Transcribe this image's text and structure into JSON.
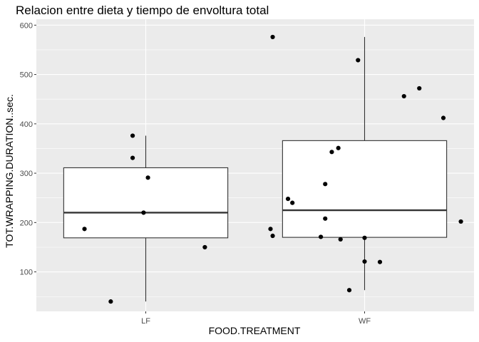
{
  "chart_data": {
    "type": "boxplot",
    "title": "Relacion entre dieta y tiempo de envoltura total",
    "xlabel": "FOOD.TREATMENT",
    "ylabel": "TOT.WRAPPING.DURATION..sec.",
    "categories": [
      "LF",
      "WF"
    ],
    "ylim": [
      20,
      612
    ],
    "yticks": [
      100,
      200,
      300,
      400,
      500,
      600
    ],
    "grid": true,
    "colors": {
      "panel": "#ebebeb",
      "grid": "#ffffff",
      "box_fill": "#ffffff",
      "box_line": "#333333",
      "point": "#000000"
    },
    "boxes": [
      {
        "category": "LF",
        "whisker_low": 40,
        "q1": 169,
        "median": 220,
        "q3": 311,
        "whisker_high": 376
      },
      {
        "category": "WF",
        "whisker_low": 63,
        "q1": 170,
        "median": 225,
        "q3": 366,
        "whisker_high": 576
      }
    ],
    "points": [
      {
        "category": "LF",
        "jitter": -0.28,
        "y": 187
      },
      {
        "category": "LF",
        "jitter": -0.06,
        "y": 376
      },
      {
        "category": "LF",
        "jitter": -0.06,
        "y": 331
      },
      {
        "category": "LF",
        "jitter": 0.01,
        "y": 291
      },
      {
        "category": "LF",
        "jitter": -0.01,
        "y": 220
      },
      {
        "category": "LF",
        "jitter": 0.27,
        "y": 150
      },
      {
        "category": "LF",
        "jitter": -0.16,
        "y": 40
      },
      {
        "category": "WF",
        "jitter": -0.42,
        "y": 576
      },
      {
        "category": "WF",
        "jitter": -0.03,
        "y": 529
      },
      {
        "category": "WF",
        "jitter": 0.18,
        "y": 456
      },
      {
        "category": "WF",
        "jitter": 0.25,
        "y": 472
      },
      {
        "category": "WF",
        "jitter": 0.36,
        "y": 412
      },
      {
        "category": "WF",
        "jitter": -0.12,
        "y": 351
      },
      {
        "category": "WF",
        "jitter": -0.15,
        "y": 343
      },
      {
        "category": "WF",
        "jitter": -0.18,
        "y": 278
      },
      {
        "category": "WF",
        "jitter": -0.35,
        "y": 248
      },
      {
        "category": "WF",
        "jitter": -0.33,
        "y": 240
      },
      {
        "category": "WF",
        "jitter": -0.18,
        "y": 208
      },
      {
        "category": "WF",
        "jitter": 0.44,
        "y": 202
      },
      {
        "category": "WF",
        "jitter": -0.43,
        "y": 187
      },
      {
        "category": "WF",
        "jitter": -0.42,
        "y": 173
      },
      {
        "category": "WF",
        "jitter": -0.2,
        "y": 171
      },
      {
        "category": "WF",
        "jitter": -0.11,
        "y": 166
      },
      {
        "category": "WF",
        "jitter": 0.0,
        "y": 169
      },
      {
        "category": "WF",
        "jitter": 0.0,
        "y": 121
      },
      {
        "category": "WF",
        "jitter": 0.07,
        "y": 120
      },
      {
        "category": "WF",
        "jitter": -0.07,
        "y": 63
      }
    ]
  }
}
